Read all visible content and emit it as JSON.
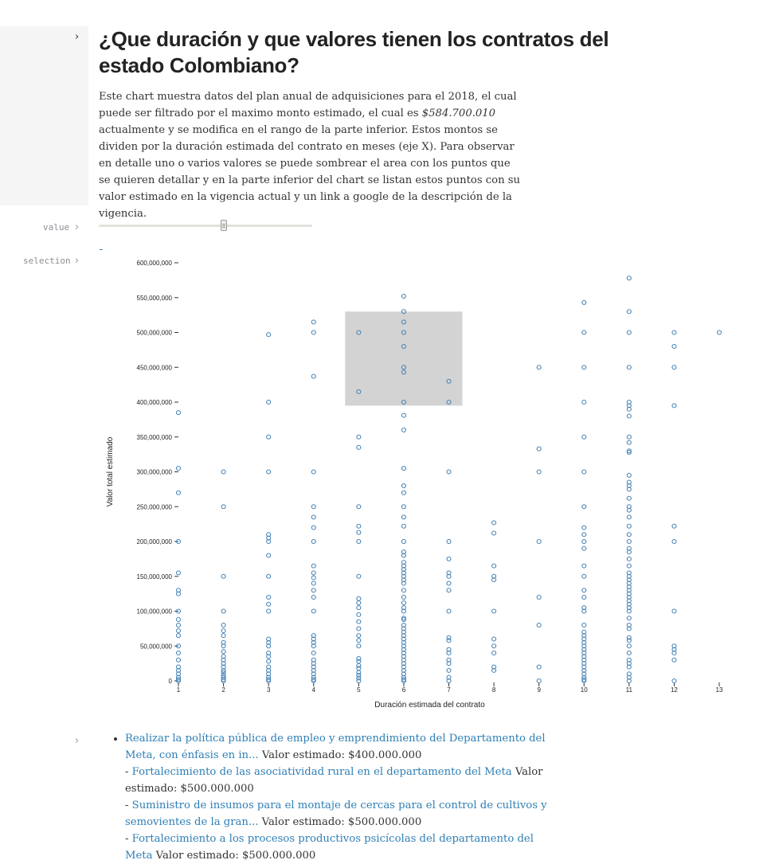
{
  "header": {
    "title": "¿Que duración y que valores tienen los contratos del estado Colombiano?",
    "desc_part1": "Este chart muestra datos del plan anual de adquisiciones para el 2018, el cual puede ser filtrado por el maximo monto estimado, el cual es ",
    "desc_value": "$584.700.010",
    "desc_part2": " actualmente y se modifica en el rango de la parte inferior. Estos montos se dividen por la duración estimada del contrato en meses (eje X). Para observar en detalle uno o varios valores se puede sombrear el area con los puntos que se quieren detallar y en la parte inferior del chart se listan estos puntos con su valor estimado en la vigencia actual y un link a google de la descripción de la vigencia."
  },
  "cells": {
    "value_label": "value",
    "selection_label": "selection"
  },
  "slider": {
    "fraction": 0.587
  },
  "colors": {
    "point": "#4682b4",
    "brush": "#d3d3d3",
    "axis": "#333333"
  },
  "chart_data": {
    "type": "scatter",
    "xlabel": "Duración estimada del contrato",
    "ylabel": "Valor total estimado",
    "xlim": [
      1,
      13
    ],
    "ylim": [
      0,
      600000000
    ],
    "x_ticks": [
      1,
      2,
      3,
      4,
      5,
      6,
      7,
      8,
      9,
      10,
      11,
      12,
      13
    ],
    "y_ticks": [
      0,
      50000000,
      100000000,
      150000000,
      200000000,
      250000000,
      300000000,
      350000000,
      400000000,
      450000000,
      500000000,
      550000000,
      600000000
    ],
    "y_tick_labels": [
      "0",
      "50,000,000",
      "100,000,000",
      "150,000,000",
      "200,000,000",
      "250,000,000",
      "300,000,000",
      "350,000,000",
      "400,000,000",
      "450,000,000",
      "500,000,000",
      "550,000,000",
      "600,000,000"
    ],
    "brush": {
      "x": [
        4.7,
        7.3
      ],
      "y": [
        395000000,
        530000000
      ]
    },
    "points": [
      [
        1,
        385
      ],
      [
        1,
        305
      ],
      [
        1,
        270
      ],
      [
        1,
        200
      ],
      [
        1,
        155
      ],
      [
        1,
        130
      ],
      [
        1,
        125
      ],
      [
        1,
        100
      ],
      [
        1,
        88
      ],
      [
        1,
        80
      ],
      [
        1,
        72
      ],
      [
        1,
        65
      ],
      [
        1,
        50
      ],
      [
        1,
        40
      ],
      [
        1,
        30
      ],
      [
        1,
        20
      ],
      [
        1,
        15
      ],
      [
        1,
        10
      ],
      [
        1,
        5
      ],
      [
        1,
        2
      ],
      [
        1,
        0
      ],
      [
        2,
        300
      ],
      [
        2,
        250
      ],
      [
        2,
        150
      ],
      [
        2,
        100
      ],
      [
        2,
        80
      ],
      [
        2,
        72
      ],
      [
        2,
        65
      ],
      [
        2,
        55
      ],
      [
        2,
        50
      ],
      [
        2,
        42
      ],
      [
        2,
        35
      ],
      [
        2,
        30
      ],
      [
        2,
        25
      ],
      [
        2,
        20
      ],
      [
        2,
        15
      ],
      [
        2,
        12
      ],
      [
        2,
        8
      ],
      [
        2,
        5
      ],
      [
        2,
        2
      ],
      [
        2,
        0
      ],
      [
        3,
        497
      ],
      [
        3,
        400
      ],
      [
        3,
        350
      ],
      [
        3,
        300
      ],
      [
        3,
        210
      ],
      [
        3,
        205
      ],
      [
        3,
        200
      ],
      [
        3,
        180
      ],
      [
        3,
        150
      ],
      [
        3,
        120
      ],
      [
        3,
        110
      ],
      [
        3,
        100
      ],
      [
        3,
        60
      ],
      [
        3,
        55
      ],
      [
        3,
        50
      ],
      [
        3,
        40
      ],
      [
        3,
        35
      ],
      [
        3,
        28
      ],
      [
        3,
        20
      ],
      [
        3,
        15
      ],
      [
        3,
        10
      ],
      [
        3,
        5
      ],
      [
        3,
        2
      ],
      [
        3,
        0
      ],
      [
        4,
        515
      ],
      [
        4,
        500
      ],
      [
        4,
        437
      ],
      [
        4,
        300
      ],
      [
        4,
        250
      ],
      [
        4,
        235
      ],
      [
        4,
        220
      ],
      [
        4,
        200
      ],
      [
        4,
        165
      ],
      [
        4,
        155
      ],
      [
        4,
        148
      ],
      [
        4,
        140
      ],
      [
        4,
        130
      ],
      [
        4,
        120
      ],
      [
        4,
        100
      ],
      [
        4,
        65
      ],
      [
        4,
        60
      ],
      [
        4,
        55
      ],
      [
        4,
        50
      ],
      [
        4,
        40
      ],
      [
        4,
        30
      ],
      [
        4,
        25
      ],
      [
        4,
        20
      ],
      [
        4,
        15
      ],
      [
        4,
        10
      ],
      [
        4,
        5
      ],
      [
        4,
        2
      ],
      [
        4,
        0
      ],
      [
        5,
        500
      ],
      [
        5,
        415
      ],
      [
        5,
        350
      ],
      [
        5,
        335
      ],
      [
        5,
        250
      ],
      [
        5,
        222
      ],
      [
        5,
        213
      ],
      [
        5,
        200
      ],
      [
        5,
        150
      ],
      [
        5,
        118
      ],
      [
        5,
        112
      ],
      [
        5,
        105
      ],
      [
        5,
        95
      ],
      [
        5,
        85
      ],
      [
        5,
        75
      ],
      [
        5,
        65
      ],
      [
        5,
        58
      ],
      [
        5,
        50
      ],
      [
        5,
        32
      ],
      [
        5,
        28
      ],
      [
        5,
        22
      ],
      [
        5,
        18
      ],
      [
        5,
        12
      ],
      [
        5,
        8
      ],
      [
        5,
        4
      ],
      [
        5,
        0
      ],
      [
        6,
        552
      ],
      [
        6,
        530
      ],
      [
        6,
        515
      ],
      [
        6,
        500
      ],
      [
        6,
        480
      ],
      [
        6,
        450
      ],
      [
        6,
        443
      ],
      [
        6,
        400
      ],
      [
        6,
        381
      ],
      [
        6,
        360
      ],
      [
        6,
        305
      ],
      [
        6,
        280
      ],
      [
        6,
        270
      ],
      [
        6,
        250
      ],
      [
        6,
        235
      ],
      [
        6,
        222
      ],
      [
        6,
        200
      ],
      [
        6,
        185
      ],
      [
        6,
        180
      ],
      [
        6,
        170
      ],
      [
        6,
        165
      ],
      [
        6,
        160
      ],
      [
        6,
        155
      ],
      [
        6,
        150
      ],
      [
        6,
        145
      ],
      [
        6,
        140
      ],
      [
        6,
        130
      ],
      [
        6,
        120
      ],
      [
        6,
        112
      ],
      [
        6,
        105
      ],
      [
        6,
        100
      ],
      [
        6,
        90
      ],
      [
        6,
        88
      ],
      [
        6,
        80
      ],
      [
        6,
        75
      ],
      [
        6,
        70
      ],
      [
        6,
        65
      ],
      [
        6,
        60
      ],
      [
        6,
        55
      ],
      [
        6,
        50
      ],
      [
        6,
        45
      ],
      [
        6,
        40
      ],
      [
        6,
        35
      ],
      [
        6,
        30
      ],
      [
        6,
        25
      ],
      [
        6,
        20
      ],
      [
        6,
        15
      ],
      [
        6,
        10
      ],
      [
        6,
        5
      ],
      [
        6,
        2
      ],
      [
        6,
        0
      ],
      [
        7,
        430
      ],
      [
        7,
        400
      ],
      [
        7,
        300
      ],
      [
        7,
        200
      ],
      [
        7,
        175
      ],
      [
        7,
        155
      ],
      [
        7,
        150
      ],
      [
        7,
        140
      ],
      [
        7,
        130
      ],
      [
        7,
        100
      ],
      [
        7,
        62
      ],
      [
        7,
        58
      ],
      [
        7,
        45
      ],
      [
        7,
        40
      ],
      [
        7,
        30
      ],
      [
        7,
        25
      ],
      [
        7,
        15
      ],
      [
        7,
        5
      ],
      [
        7,
        0
      ],
      [
        8,
        227
      ],
      [
        8,
        212
      ],
      [
        8,
        165
      ],
      [
        8,
        150
      ],
      [
        8,
        145
      ],
      [
        8,
        100
      ],
      [
        8,
        60
      ],
      [
        8,
        50
      ],
      [
        8,
        40
      ],
      [
        8,
        20
      ],
      [
        8,
        15
      ],
      [
        9,
        450
      ],
      [
        9,
        333
      ],
      [
        9,
        300
      ],
      [
        9,
        200
      ],
      [
        9,
        120
      ],
      [
        9,
        80
      ],
      [
        9,
        20
      ],
      [
        9,
        0
      ],
      [
        10,
        543
      ],
      [
        10,
        500
      ],
      [
        10,
        450
      ],
      [
        10,
        400
      ],
      [
        10,
        350
      ],
      [
        10,
        300
      ],
      [
        10,
        250
      ],
      [
        10,
        220
      ],
      [
        10,
        210
      ],
      [
        10,
        200
      ],
      [
        10,
        190
      ],
      [
        10,
        165
      ],
      [
        10,
        150
      ],
      [
        10,
        130
      ],
      [
        10,
        120
      ],
      [
        10,
        105
      ],
      [
        10,
        100
      ],
      [
        10,
        80
      ],
      [
        10,
        70
      ],
      [
        10,
        65
      ],
      [
        10,
        60
      ],
      [
        10,
        55
      ],
      [
        10,
        50
      ],
      [
        10,
        45
      ],
      [
        10,
        40
      ],
      [
        10,
        35
      ],
      [
        10,
        30
      ],
      [
        10,
        25
      ],
      [
        10,
        20
      ],
      [
        10,
        15
      ],
      [
        10,
        10
      ],
      [
        10,
        5
      ],
      [
        10,
        2
      ],
      [
        10,
        0
      ],
      [
        11,
        578
      ],
      [
        11,
        530
      ],
      [
        11,
        500
      ],
      [
        11,
        450
      ],
      [
        11,
        400
      ],
      [
        11,
        395
      ],
      [
        11,
        390
      ],
      [
        11,
        380
      ],
      [
        11,
        350
      ],
      [
        11,
        342
      ],
      [
        11,
        330
      ],
      [
        11,
        328
      ],
      [
        11,
        295
      ],
      [
        11,
        285
      ],
      [
        11,
        280
      ],
      [
        11,
        275
      ],
      [
        11,
        262
      ],
      [
        11,
        250
      ],
      [
        11,
        245
      ],
      [
        11,
        235
      ],
      [
        11,
        222
      ],
      [
        11,
        210
      ],
      [
        11,
        200
      ],
      [
        11,
        190
      ],
      [
        11,
        185
      ],
      [
        11,
        175
      ],
      [
        11,
        165
      ],
      [
        11,
        155
      ],
      [
        11,
        150
      ],
      [
        11,
        145
      ],
      [
        11,
        140
      ],
      [
        11,
        135
      ],
      [
        11,
        130
      ],
      [
        11,
        125
      ],
      [
        11,
        120
      ],
      [
        11,
        115
      ],
      [
        11,
        110
      ],
      [
        11,
        105
      ],
      [
        11,
        100
      ],
      [
        11,
        90
      ],
      [
        11,
        80
      ],
      [
        11,
        75
      ],
      [
        11,
        62
      ],
      [
        11,
        58
      ],
      [
        11,
        50
      ],
      [
        11,
        40
      ],
      [
        11,
        30
      ],
      [
        11,
        25
      ],
      [
        11,
        20
      ],
      [
        11,
        10
      ],
      [
        11,
        5
      ],
      [
        11,
        0
      ],
      [
        12,
        500
      ],
      [
        12,
        480
      ],
      [
        12,
        450
      ],
      [
        12,
        395
      ],
      [
        12,
        222
      ],
      [
        12,
        200
      ],
      [
        12,
        100
      ],
      [
        12,
        50
      ],
      [
        12,
        45
      ],
      [
        12,
        40
      ],
      [
        12,
        30
      ],
      [
        12,
        0
      ],
      [
        13,
        500
      ]
    ]
  },
  "selection_list": {
    "items": [
      {
        "link": "Realizar la política pública de empleo y emprendimiento del Departamento del Meta, con énfasis en in...",
        "value": " Valor estimado: $400.000.000"
      },
      {
        "link": "Fortalecimiento de las asociatividad rural en el departamento del Meta",
        "value": " Valor estimado: $500.000.000"
      },
      {
        "link": "Suministro de insumos para el montaje de cercas para el control de cultivos y semovientes de la gran...",
        "value": " Valor estimado: $500.000.000"
      },
      {
        "link": "Fortalecimiento a los procesos productivos psicícolas del departamento del Meta",
        "value": " Valor estimado: $500.000.000"
      }
    ]
  }
}
